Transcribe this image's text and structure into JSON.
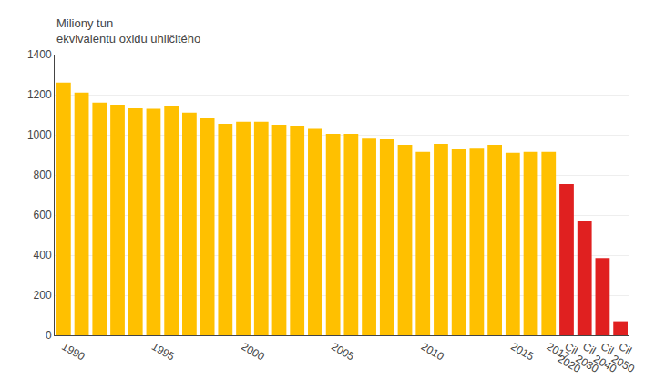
{
  "chart_data": {
    "type": "bar",
    "ylabel": "Miliony tun\nekvivalentu oxidu uhličitého",
    "categories": [
      "1990",
      null,
      null,
      null,
      null,
      "1995",
      null,
      null,
      null,
      null,
      "2000",
      null,
      null,
      null,
      null,
      "2005",
      null,
      null,
      null,
      null,
      "2010",
      null,
      null,
      null,
      null,
      "2015",
      null,
      "2017",
      "Cil\n2020",
      "Cil\n2030",
      "Cil\n2040",
      "Cil\n2050"
    ],
    "values": [
      1260,
      1210,
      1160,
      1150,
      1135,
      1130,
      1145,
      1110,
      1085,
      1055,
      1065,
      1065,
      1050,
      1045,
      1030,
      1005,
      1005,
      985,
      980,
      950,
      915,
      955,
      930,
      935,
      950,
      910,
      915,
      915,
      755,
      570,
      385,
      70
    ],
    "colors": [
      "#FFC000",
      "#FFC000",
      "#FFC000",
      "#FFC000",
      "#FFC000",
      "#FFC000",
      "#FFC000",
      "#FFC000",
      "#FFC000",
      "#FFC000",
      "#FFC000",
      "#FFC000",
      "#FFC000",
      "#FFC000",
      "#FFC000",
      "#FFC000",
      "#FFC000",
      "#FFC000",
      "#FFC000",
      "#FFC000",
      "#FFC000",
      "#FFC000",
      "#FFC000",
      "#FFC000",
      "#FFC000",
      "#FFC000",
      "#FFC000",
      "#FFC000",
      "#E02020",
      "#E02020",
      "#E02020",
      "#E02020"
    ],
    "ylim": [
      0,
      1400
    ],
    "yticks": [
      0,
      200,
      400,
      600,
      800,
      1000,
      1200,
      1400
    ],
    "grid": true
  }
}
